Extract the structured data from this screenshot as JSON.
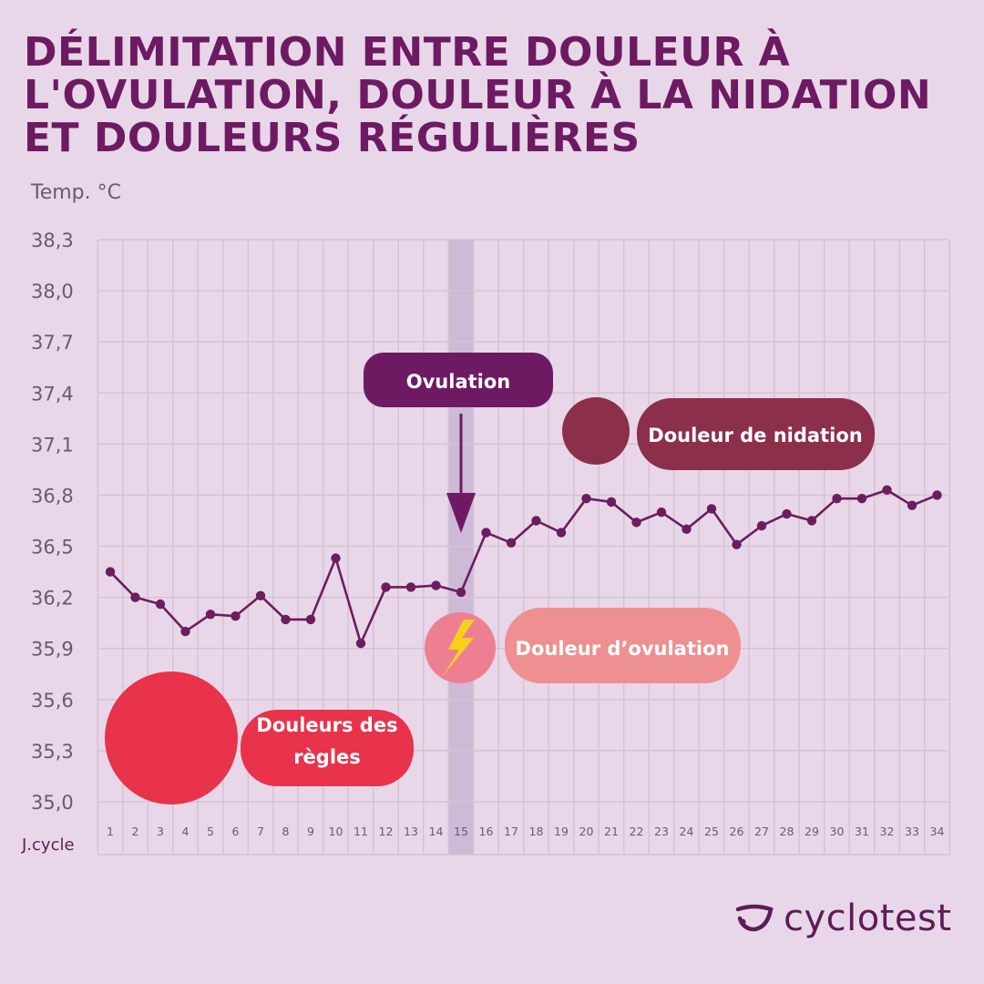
{
  "title_lines": [
    "DÉLIMITATION ENTRE DOULEUR À",
    "L'OVULATION, DOULEUR À LA NIDATION",
    "ET DOULEURS RÉGULIÈRES"
  ],
  "brand": {
    "name": "cyclotest",
    "logo_icon": "cyclotest-logo-icon"
  },
  "colors": {
    "background": "#e8d7e8",
    "grid": "#d6c2d6",
    "line": "#6b1d5e",
    "title": "#6d1a63",
    "regles": "#e8334a",
    "ovulation_pain": "#ee8f91",
    "nidation": "#8c2f4b",
    "ovulation_box": "#6d1a63",
    "ovulation_band": "#cdbad6"
  },
  "chart_data": {
    "type": "line",
    "ylabel": "Temp. °C",
    "xlabel": "J.cycle",
    "ylim": [
      35.0,
      38.3
    ],
    "yticks": [
      "38,3",
      "38,0",
      "37,7",
      "37,4",
      "37,1",
      "36,8",
      "36,5",
      "36,2",
      "35,9",
      "35,6",
      "35,3",
      "35,0"
    ],
    "x": [
      1,
      2,
      3,
      4,
      5,
      6,
      7,
      8,
      9,
      10,
      11,
      12,
      13,
      14,
      15,
      16,
      17,
      18,
      19,
      20,
      21,
      22,
      23,
      24,
      25,
      26,
      27,
      28,
      29,
      30,
      31,
      32,
      33,
      34
    ],
    "series": [
      {
        "values": [
          36.35,
          36.2,
          36.16,
          36.0,
          36.1,
          36.09,
          36.21,
          36.07,
          36.07,
          36.43,
          35.93,
          36.26,
          36.26,
          36.27,
          36.23,
          36.58,
          36.52,
          36.65,
          36.58,
          36.78,
          36.76,
          36.64,
          36.7,
          36.6,
          36.72,
          36.51,
          36.62,
          36.69,
          36.65,
          36.78,
          36.78,
          36.83,
          36.74,
          36.8
        ]
      }
    ],
    "ovulation_day": 15,
    "annotations": {
      "ovulation_label": "Ovulation",
      "nidation_label": "Douleur de nidation",
      "ovulation_pain_label": "Douleur d’ovulation",
      "regles_label": [
        "Douleurs des",
        "règles"
      ],
      "ovulation_pain_icon": "lightning-icon",
      "arrow_icon": "arrow-down-icon"
    },
    "grid": true
  }
}
